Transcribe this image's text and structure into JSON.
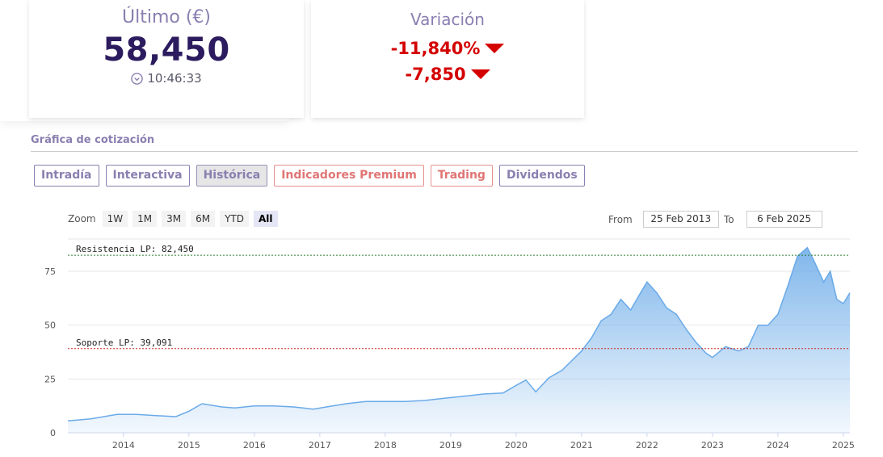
{
  "last_card": {
    "title": "Último (€)",
    "value": "58,450",
    "time": "10:46:33",
    "time_icon": "clock-icon"
  },
  "variation_card": {
    "title": "Variación",
    "percent": "-11,840%",
    "absolute": "-7,850",
    "trend": "down",
    "color": "#d40000"
  },
  "section": {
    "title": "Gráfica de cotización"
  },
  "tabs": [
    {
      "label": "Intradía",
      "active": false,
      "premium": false
    },
    {
      "label": "Interactiva",
      "active": false,
      "premium": false
    },
    {
      "label": "Histórica",
      "active": true,
      "premium": false
    },
    {
      "label": "Indicadores Premium",
      "active": false,
      "premium": true
    },
    {
      "label": "Trading",
      "active": false,
      "premium": true
    },
    {
      "label": "Dividendos",
      "active": false,
      "premium": false
    }
  ],
  "zoom": {
    "label": "Zoom",
    "buttons": [
      "1W",
      "1M",
      "3M",
      "6M",
      "YTD",
      "All"
    ],
    "active": "All"
  },
  "range": {
    "from_label": "From",
    "from_value": "25 Feb 2013",
    "to_label": "To",
    "to_value": "6 Feb 2025"
  },
  "colors": {
    "accent": "#8a7fb0",
    "brand_dark": "#2c1b5e",
    "negative": "#d40000",
    "series": "#6aaae8"
  },
  "chart_data": {
    "type": "area",
    "x_ticks": [
      "2014",
      "2015",
      "2016",
      "2017",
      "2018",
      "2019",
      "2020",
      "2021",
      "2022",
      "2023",
      "2024",
      "2025"
    ],
    "y_ticks": [
      "0",
      "25",
      "50",
      "75"
    ],
    "ylim": [
      0,
      90
    ],
    "xlim": [
      2013.15,
      2025.1
    ],
    "x": [
      2013.15,
      2013.5,
      2013.9,
      2014.2,
      2014.5,
      2014.8,
      2015.0,
      2015.2,
      2015.5,
      2015.7,
      2016.0,
      2016.3,
      2016.6,
      2016.9,
      2017.1,
      2017.4,
      2017.7,
      2018.0,
      2018.3,
      2018.6,
      2018.9,
      2019.2,
      2019.5,
      2019.8,
      2020.0,
      2020.15,
      2020.3,
      2020.5,
      2020.7,
      2020.9,
      2021.0,
      2021.15,
      2021.3,
      2021.45,
      2021.6,
      2021.75,
      2021.9,
      2022.0,
      2022.15,
      2022.3,
      2022.45,
      2022.6,
      2022.75,
      2022.9,
      2023.0,
      2023.2,
      2023.4,
      2023.55,
      2023.7,
      2023.85,
      2024.0,
      2024.15,
      2024.3,
      2024.45,
      2024.55,
      2024.7,
      2024.8,
      2024.9,
      2025.0,
      2025.1
    ],
    "y": [
      5.5,
      6.5,
      8.5,
      8.5,
      8.0,
      7.5,
      10.0,
      13.5,
      12.0,
      11.5,
      12.5,
      12.5,
      12.0,
      11.0,
      12.0,
      13.5,
      14.5,
      14.5,
      14.5,
      15.0,
      16.0,
      17.0,
      18.0,
      18.5,
      22.0,
      24.5,
      19.0,
      25.5,
      29.0,
      35.0,
      38.0,
      44.0,
      52.0,
      55.0,
      62.0,
      57.0,
      65.0,
      70.0,
      65.0,
      58.0,
      55.0,
      48.0,
      42.0,
      37.0,
      35.0,
      40.0,
      38.0,
      40.0,
      50.0,
      50.0,
      55.0,
      68.0,
      82.0,
      86.0,
      80.0,
      70.0,
      75.0,
      62.0,
      60.0,
      65.0
    ],
    "annotations": [
      {
        "label": "Resistencia LP: 82,450",
        "value": 82.45,
        "color": "#2e7d32"
      },
      {
        "label": "Soporte LP: 39,091",
        "value": 39.091,
        "color": "#c62828"
      }
    ],
    "grid": true
  }
}
